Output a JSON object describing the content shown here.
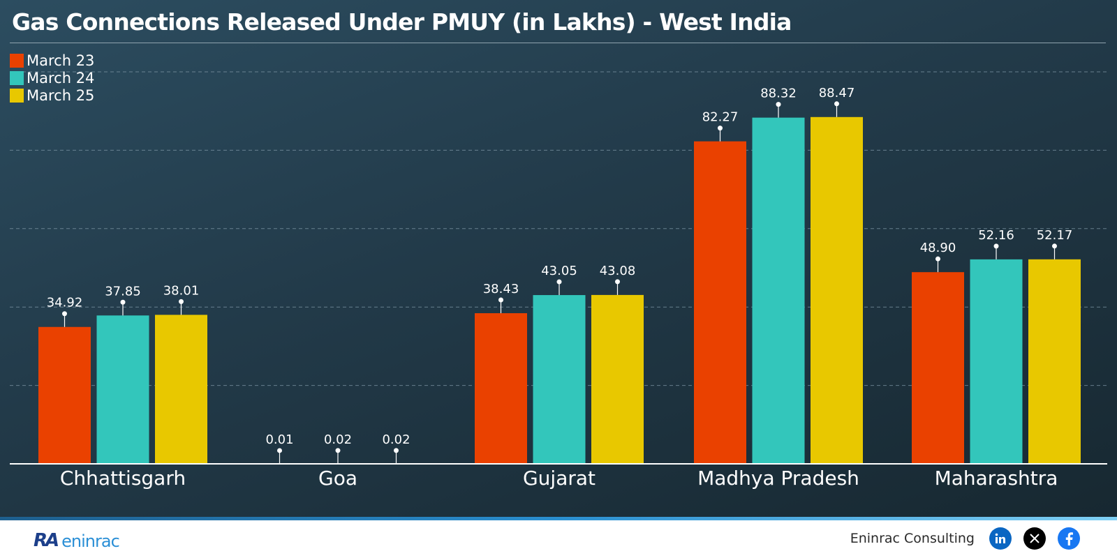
{
  "chart_data": {
    "type": "bar",
    "title": "Gas Connections Released Under PMUY (in Lakhs) - West India",
    "categories": [
      "Chhattisgarh",
      "Goa",
      "Gujarat",
      "Madhya Pradesh",
      "Maharashtra"
    ],
    "series": [
      {
        "name": "March 23",
        "color": "#ea4100",
        "values": [
          34.92,
          0.01,
          38.43,
          82.27,
          48.9
        ],
        "labels": [
          "34.92",
          "0.01",
          "38.43",
          "82.27",
          "48.90"
        ]
      },
      {
        "name": "March 24",
        "color": "#33c6bb",
        "values": [
          37.85,
          0.02,
          43.05,
          88.32,
          52.16
        ],
        "labels": [
          "37.85",
          "0.02",
          "43.05",
          "88.32",
          "52.16"
        ]
      },
      {
        "name": "March 25",
        "color": "#e8c800",
        "values": [
          38.01,
          0.02,
          43.08,
          88.47,
          52.17
        ],
        "labels": [
          "38.01",
          "0.02",
          "43.08",
          "88.47",
          "52.17"
        ]
      }
    ],
    "ylim": [
      0,
      100
    ],
    "grid": true,
    "legend_position": "top-left",
    "xlabel": "",
    "ylabel": ""
  },
  "footer": {
    "brand": "Eninrac Consulting",
    "logo_mark": "RA",
    "logo_word": "eninrac",
    "social_icons": [
      "linkedin-icon",
      "x-icon",
      "facebook-icon"
    ],
    "social_colors": {
      "linkedin": "#0a66c2",
      "x": "#000000",
      "facebook": "#1877f2"
    }
  }
}
